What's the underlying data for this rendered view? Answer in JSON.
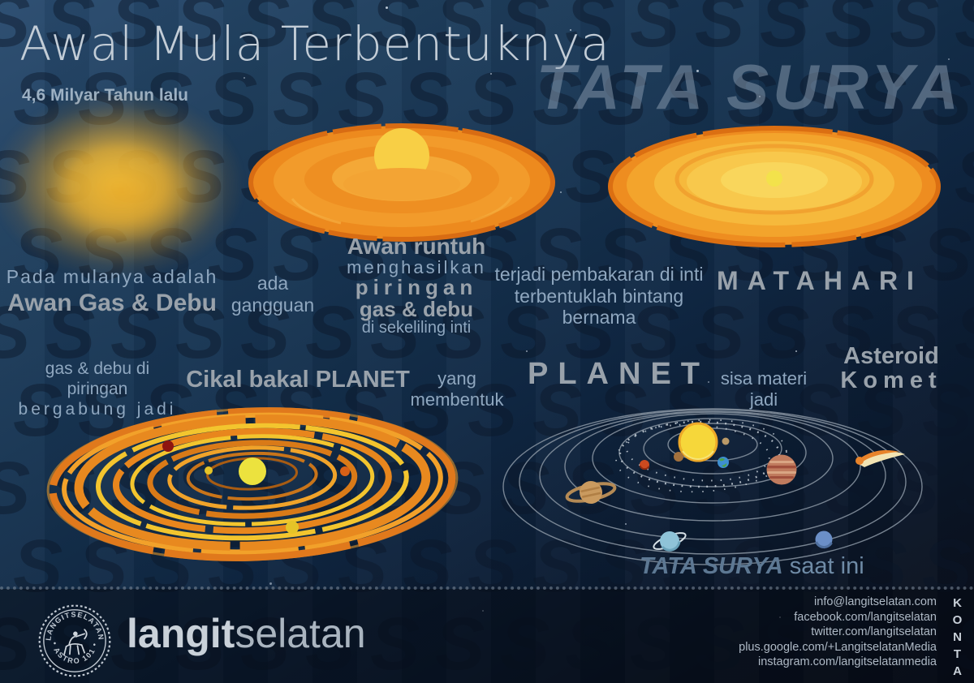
{
  "palette": {
    "accent_orange": "#ee8d20",
    "accent_yellow": "#f8cf45",
    "text_light_blue": "#8fa7bf",
    "text_gray": "#99a2ab",
    "big_title_gray": "#94a6b8",
    "background_top": "#2a4c70",
    "background_bottom": "#090e1a"
  },
  "header": {
    "title": "Awal Mula Terbentuknya",
    "subtitle": "4,6 Milyar Tahun lalu",
    "big_title": "TATA SURYA"
  },
  "steps": {
    "origin": {
      "light": "Pada mulanya adalah",
      "bold": "Awan Gas & Debu"
    },
    "disturbance": {
      "label": "ada gangguan"
    },
    "collapse": {
      "bold_top": "Awan runtuh",
      "light_mid": "menghasilkan",
      "bold_disk": "piringan",
      "bold_gas": "gas & debu",
      "light_bottom": "di sekeliling inti"
    },
    "ignition": {
      "line1": "terjadi pembakaran di inti",
      "line2": "terbentuklah bintang bernama",
      "star_name": "MATAHARI"
    },
    "accretion": {
      "light_line1": "gas & debu di piringan",
      "light_line2": "bergabung jadi",
      "bold": "Cikal bakal PLANET"
    },
    "planets": {
      "light": "yang membentuk",
      "bold": "PLANET"
    },
    "leftover": {
      "light": "sisa materi jadi",
      "bold_line1": "Asteroid",
      "bold_line2": "Komet"
    },
    "today": {
      "bold": "TATA SURYA",
      "light": "saat ini"
    }
  },
  "footer": {
    "stamp": {
      "arc_top": "LANGITSELATAN",
      "arc_bottom": "• ASTRO 101 •"
    },
    "brand": {
      "bold": "langit",
      "light": "selatan"
    },
    "kontak_label": "KONTAK",
    "contacts": [
      "info@langitselatan.com",
      "facebook.com/langitselatan",
      "twitter.com/langitselatan",
      "plus.google.com/+LangitselatanMedia",
      "instagram.com/langitselatanmedia"
    ]
  }
}
